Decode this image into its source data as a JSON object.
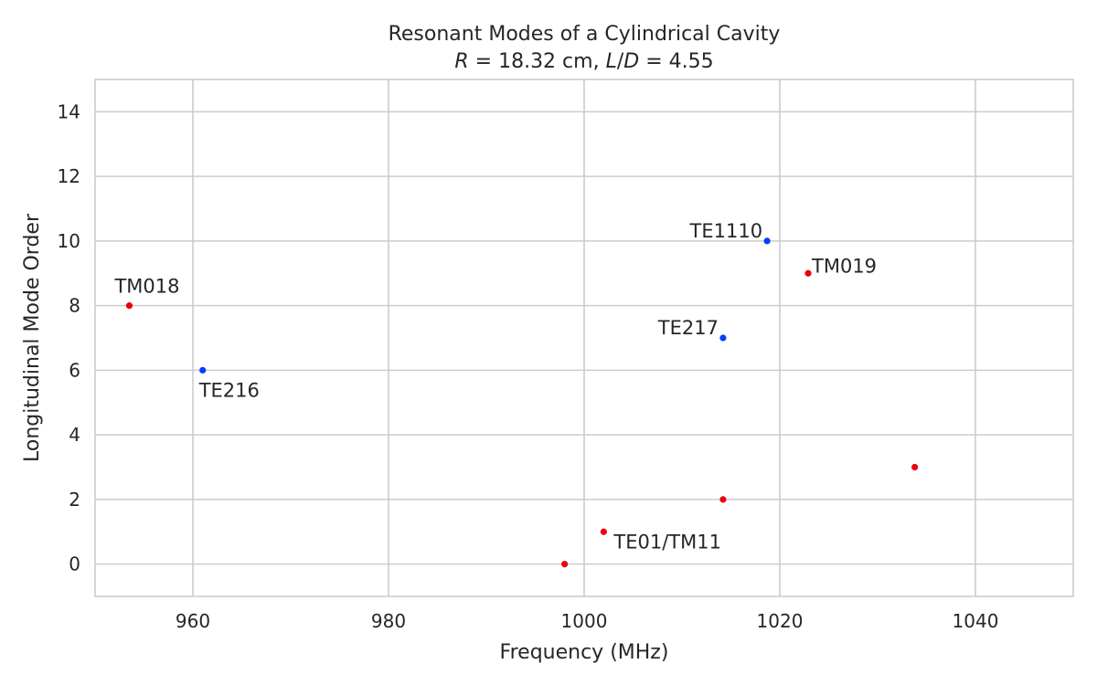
{
  "chart_data": {
    "type": "scatter",
    "title": "Resonant Modes of a Cylindrical Cavity",
    "subtitle": {
      "r_symbol": "R",
      "r_eq": " = 18.32 cm, ",
      "ld_symbol": "L",
      "ld_slash": "/",
      "ld_symbol2": "D",
      "ld_eq": " = 4.55"
    },
    "xlabel": "Frequency (MHz)",
    "ylabel": "Longitudinal Mode Order",
    "xlim": [
      950,
      1050
    ],
    "ylim": [
      -1,
      15
    ],
    "x_ticks": [
      960,
      980,
      1000,
      1020,
      1040
    ],
    "y_ticks": [
      0,
      2,
      4,
      6,
      8,
      10,
      12,
      14
    ],
    "x_tick_labels": [
      "960",
      "980",
      "1000",
      "1020",
      "1040"
    ],
    "y_tick_labels": [
      "0",
      "2",
      "4",
      "6",
      "8",
      "10",
      "12",
      "14"
    ],
    "grid": true,
    "colors": {
      "red": "#e8000b",
      "blue": "#023eff"
    },
    "points": [
      {
        "x": 953.5,
        "y": 8,
        "color": "red",
        "label": "TM018",
        "anchor": "start",
        "pos": "above"
      },
      {
        "x": 961.0,
        "y": 6,
        "color": "blue",
        "label": "TE216",
        "anchor": "start",
        "pos": "below"
      },
      {
        "x": 998.0,
        "y": 0,
        "color": "red",
        "label": ""
      },
      {
        "x": 1002.0,
        "y": 1,
        "color": "red",
        "label": "TE01/TM11",
        "anchor": "start",
        "pos": "below-right"
      },
      {
        "x": 1014.2,
        "y": 2,
        "color": "red",
        "label": ""
      },
      {
        "x": 1014.2,
        "y": 7,
        "color": "blue",
        "label": "TE217",
        "anchor": "end",
        "pos": "left"
      },
      {
        "x": 1018.7,
        "y": 10,
        "color": "blue",
        "label": "TE1110",
        "anchor": "end",
        "pos": "left"
      },
      {
        "x": 1022.9,
        "y": 9,
        "color": "red",
        "label": "TM019",
        "anchor": "start",
        "pos": "right"
      },
      {
        "x": 1033.8,
        "y": 3,
        "color": "red",
        "label": ""
      }
    ]
  }
}
